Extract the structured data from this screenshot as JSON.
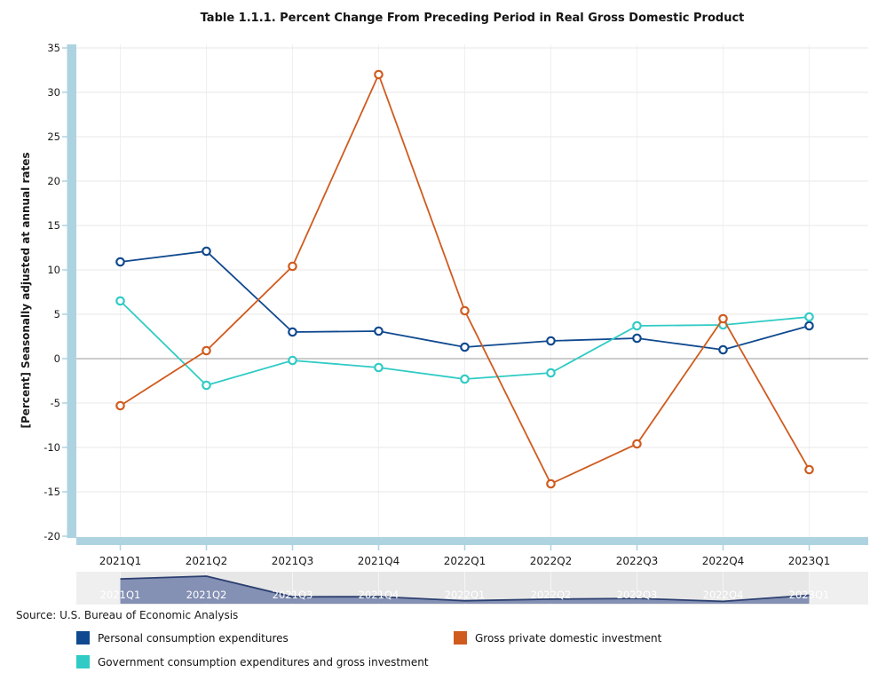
{
  "title": "Table 1.1.1. Percent Change From Preceding Period in Real Gross Domestic Product",
  "source": "Source: U.S. Bureau of Economic Analysis",
  "colors": {
    "accent_band": "#aed3e0",
    "gridline": "#e7e7e7",
    "vertical_gridline": "#f0f0f0",
    "zero_line": "#9a9a9a",
    "navy": "#10498f",
    "orange": "#d05b1e",
    "teal": "#30cbc5",
    "navigator_bg": "#e7e7e7",
    "navigator_mask": "#efefef",
    "navigator_grid": "#f5f5f5",
    "navigator_fill": "#8490b4",
    "navigator_line": "#2c4070",
    "text": "#1a1a1a"
  },
  "y_axis": {
    "label": "[Percent] Seasonally adjusted at annual rates",
    "min": -20,
    "max": 35,
    "step": 5,
    "ticks": [
      35,
      30,
      25,
      20,
      15,
      10,
      5,
      0,
      -5,
      -10,
      -15,
      -20
    ]
  },
  "chart_data": {
    "type": "line",
    "title": "Table 1.1.1. Percent Change From Preceding Period in Real Gross Domestic Product",
    "ylabel": "[Percent] Seasonally adjusted at annual rates",
    "ylim": [
      -20,
      35
    ],
    "grid": true,
    "legend_position": "bottom",
    "categories": [
      "2021Q1",
      "2021Q2",
      "2021Q3",
      "2021Q4",
      "2022Q1",
      "2022Q2",
      "2022Q3",
      "2022Q4",
      "2023Q1"
    ],
    "series": [
      {
        "id": "pce",
        "name": "Personal consumption expenditures",
        "color": "#10498f",
        "values": [
          10.9,
          12.1,
          3.0,
          3.1,
          1.3,
          2.0,
          2.3,
          1.0,
          3.7
        ]
      },
      {
        "id": "gpdi",
        "name": "Gross private domestic investment",
        "color": "#d05b1e",
        "values": [
          -5.3,
          0.9,
          10.4,
          32.0,
          5.4,
          -14.1,
          -9.6,
          4.5,
          -12.5
        ]
      },
      {
        "id": "gov",
        "name": "Government consumption expenditures and gross investment",
        "color": "#30cbc5",
        "values": [
          6.5,
          -3.0,
          -0.2,
          -1.0,
          -2.3,
          -1.6,
          3.7,
          3.8,
          4.7
        ]
      }
    ]
  },
  "navigator": {
    "series_shown": "Personal consumption expenditures",
    "labels": [
      "2021Q1",
      "2021Q2",
      "2021Q3",
      "2021Q4",
      "2022Q1",
      "2022Q2",
      "2022Q3",
      "2022Q4",
      "2023Q1"
    ]
  },
  "legend": {
    "items": [
      {
        "label": "Personal consumption expenditures",
        "series_index": 0
      },
      {
        "label": "Gross private domestic investment",
        "series_index": 1
      },
      {
        "label": "Government consumption expenditures and gross investment",
        "series_index": 2
      }
    ]
  }
}
